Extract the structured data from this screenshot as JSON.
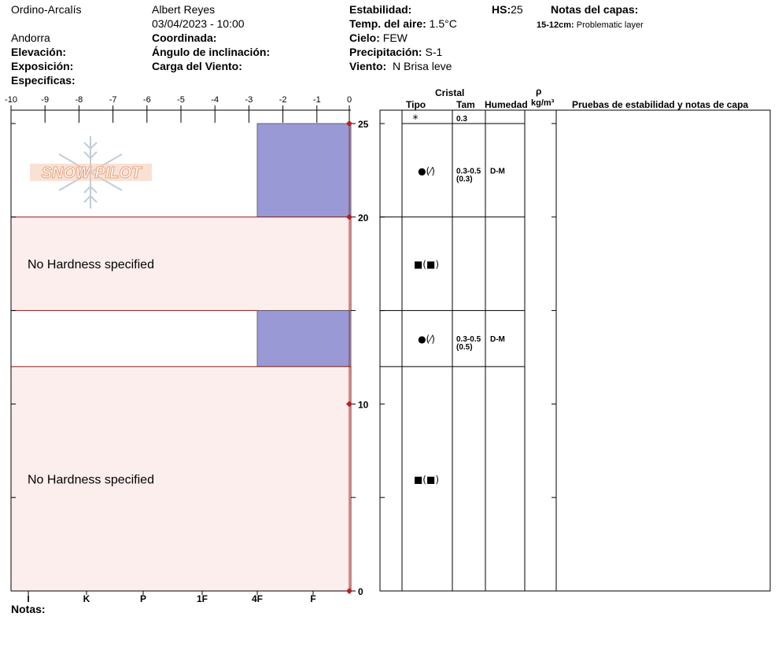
{
  "header": {
    "location": "Ordino-Arcalís",
    "region": "Andorra",
    "elevation_label": "Elevación:",
    "exposure_label": "Exposición:",
    "specifics_label": "Especificas:",
    "observer": "Albert Reyes",
    "datetime": "03/04/2023 - 10:00",
    "coordinate_label": "Coordinada:",
    "slope_label": "Ángulo de inclinación:",
    "wind_load_label": "Carga del Viento:",
    "stability_label": "Estabilidad:",
    "air_temp_label": "Temp. del aire:",
    "air_temp_value": "1.5°C",
    "sky_label": "Cielo:",
    "sky_value": "FEW",
    "precip_label": "Precipitación:",
    "precip_value": "S-1",
    "wind_label": "Viento:",
    "wind_value": "N Brisa leve",
    "hs_label": "HS:",
    "hs_value": "25",
    "layer_notes_label": "Notas del capas:",
    "layer_note_range": "15-12cm:",
    "layer_note_text": "Problematic layer"
  },
  "logo_text": "SNOW PILOT",
  "footer": {
    "notes_label": "Notas:"
  },
  "table": {
    "cristal_label": "Cristal",
    "tipo_label": "Tipo",
    "tam_label": "Tam",
    "humedad_label": "Humedad",
    "rho_label": "ρ",
    "density_unit": "kg/m³",
    "tests_label": "Pruebas de estabilidad y notas de capa"
  },
  "chart_data": {
    "type": "snow-profile",
    "x_top_ticks": [
      "-10",
      "-9",
      "-8",
      "-7",
      "-6",
      "-5",
      "-4",
      "-3",
      "-2",
      "-1",
      "0"
    ],
    "hardness_labels": [
      "I",
      "K",
      "P",
      "1F",
      "4F",
      "F"
    ],
    "y_ticks": [
      0,
      10,
      20,
      25
    ],
    "ylim": [
      0,
      25
    ],
    "temperature_profile": [
      {
        "depth": 25,
        "temp": 0
      },
      {
        "depth": 20,
        "temp": 0
      },
      {
        "depth": 10,
        "temp": 0
      },
      {
        "depth": 0,
        "temp": 0
      }
    ],
    "layers": [
      {
        "top": 25,
        "bottom": 20,
        "hardness": "4F",
        "grain": "●(⁄)",
        "size": "0.3-0.5",
        "size_sub": "(0.3)",
        "moisture": "D-M"
      },
      {
        "top": 20,
        "bottom": 15,
        "hardness": null,
        "no_hardness_text": "No Hardness specified",
        "grain": "■(■)",
        "size": "",
        "size_sub": "",
        "moisture": ""
      },
      {
        "top": 15,
        "bottom": 12,
        "hardness": "4F",
        "grain": "●(⁄)",
        "size": "0.3-0.5",
        "size_sub": "(0.5)",
        "moisture": "D-M"
      },
      {
        "top": 12,
        "bottom": 0,
        "hardness": null,
        "no_hardness_text": "No Hardness specified",
        "grain": "■(■)",
        "size": "",
        "size_sub": "",
        "moisture": ""
      }
    ],
    "surface": {
      "grain": "*",
      "size": "0.3"
    },
    "colors": {
      "hardness_fill": "#9999d6",
      "no_hardness_fill": "#fdeeee",
      "layer_border": "#8b1a1a",
      "temp_line": "#b22222"
    }
  }
}
